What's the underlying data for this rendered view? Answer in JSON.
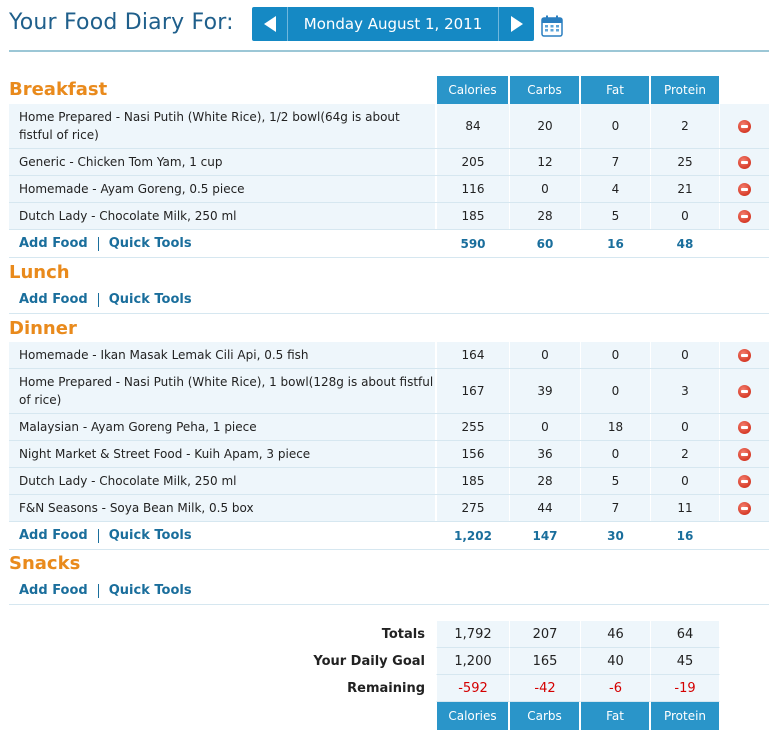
{
  "header": {
    "title": "Your Food Diary For:",
    "date": "Monday August 1, 2011",
    "prev_icon": "arrow-left-icon",
    "next_icon": "arrow-right-icon",
    "calendar_icon": "calendar-icon"
  },
  "columns": {
    "calories": "Calories",
    "carbs": "Carbs",
    "fat": "Fat",
    "protein": "Protein"
  },
  "links": {
    "add_food": "Add Food",
    "quick_tools": "Quick Tools"
  },
  "breakfast": {
    "title": "Breakfast",
    "items": [
      {
        "name": "Home Prepared - Nasi Putih (White Rice), 1/2 bowl(64g is about fistful of rice)",
        "calories": "84",
        "carbs": "20",
        "fat": "0",
        "protein": "2"
      },
      {
        "name": "Generic - Chicken Tom Yam, 1 cup",
        "calories": "205",
        "carbs": "12",
        "fat": "7",
        "protein": "25"
      },
      {
        "name": "Homemade - Ayam Goreng, 0.5 piece",
        "calories": "116",
        "carbs": "0",
        "fat": "4",
        "protein": "21"
      },
      {
        "name": "Dutch Lady - Chocolate Milk, 250 ml",
        "calories": "185",
        "carbs": "28",
        "fat": "5",
        "protein": "0"
      }
    ],
    "totals": {
      "calories": "590",
      "carbs": "60",
      "fat": "16",
      "protein": "48"
    }
  },
  "lunch": {
    "title": "Lunch"
  },
  "dinner": {
    "title": "Dinner",
    "items": [
      {
        "name": "Homemade - Ikan Masak Lemak Cili Api, 0.5 fish",
        "calories": "164",
        "carbs": "0",
        "fat": "0",
        "protein": "0"
      },
      {
        "name": "Home Prepared - Nasi Putih (White Rice), 1 bowl(128g is about fistful of rice)",
        "calories": "167",
        "carbs": "39",
        "fat": "0",
        "protein": "3"
      },
      {
        "name": "Malaysian - Ayam Goreng Peha, 1 piece",
        "calories": "255",
        "carbs": "0",
        "fat": "18",
        "protein": "0"
      },
      {
        "name": "Night Market & Street Food - Kuih Apam, 3 piece",
        "calories": "156",
        "carbs": "36",
        "fat": "0",
        "protein": "2"
      },
      {
        "name": "Dutch Lady - Chocolate Milk, 250 ml",
        "calories": "185",
        "carbs": "28",
        "fat": "5",
        "protein": "0"
      },
      {
        "name": "F&N Seasons - Soya Bean Milk, 0.5 box",
        "calories": "275",
        "carbs": "44",
        "fat": "7",
        "protein": "11"
      }
    ],
    "totals": {
      "calories": "1,202",
      "carbs": "147",
      "fat": "30",
      "protein": "16"
    }
  },
  "snacks": {
    "title": "Snacks"
  },
  "summary": {
    "totals_label": "Totals",
    "totals": {
      "calories": "1,792",
      "carbs": "207",
      "fat": "46",
      "protein": "64"
    },
    "goal_label": "Your Daily Goal",
    "goal": {
      "calories": "1,200",
      "carbs": "165",
      "fat": "40",
      "protein": "45"
    },
    "remaining_label": "Remaining",
    "remaining": {
      "calories": "-592",
      "carbs": "-42",
      "fat": "-6",
      "protein": "-19"
    }
  },
  "colors": {
    "accent_blue": "#2a95c9",
    "meal_orange": "#e98a1c",
    "link_blue": "#1a6e9c",
    "negative_red": "#d40000",
    "delete_red": "#d63b28"
  }
}
